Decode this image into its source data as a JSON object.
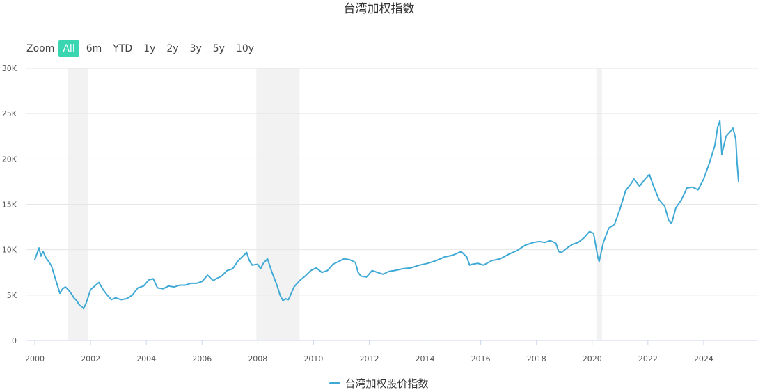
{
  "title": "台湾加权指数",
  "zoom": {
    "label": "Zoom",
    "options": [
      "All",
      "6m",
      "YTD",
      "1y",
      "2y",
      "3y",
      "5y",
      "10y"
    ],
    "selected": "All"
  },
  "colors": {
    "line": "#3fa9d6",
    "accent": "#3ad6b2",
    "band": "#f2f2f2",
    "grid": "#e6e6e6"
  },
  "chart_data": {
    "type": "line",
    "title": "台湾加权指数",
    "xlabel": "",
    "ylabel": "",
    "xlim": [
      2000.0,
      2025.4
    ],
    "ylim": [
      0,
      30000
    ],
    "x_ticks": [
      "2000",
      "2002",
      "2004",
      "2006",
      "2008",
      "2010",
      "2012",
      "2014",
      "2016",
      "2018",
      "2020",
      "2022",
      "2024"
    ],
    "y_ticks": [
      "0",
      "5K",
      "10K",
      "15K",
      "20K",
      "25K",
      "30K"
    ],
    "y_tick_values": [
      0,
      5000,
      10000,
      15000,
      20000,
      25000,
      30000
    ],
    "grid": true,
    "legend_position": "bottom-center",
    "shaded_bands": [
      [
        2001.2,
        2001.9
      ],
      [
        2007.95,
        2009.5
      ],
      [
        2020.15,
        2020.35
      ]
    ],
    "series": [
      {
        "name": "台湾加权股价指数",
        "x": [
          2000.0,
          2000.08,
          2000.15,
          2000.22,
          2000.3,
          2000.4,
          2000.5,
          2000.6,
          2000.7,
          2000.8,
          2000.9,
          2001.0,
          2001.1,
          2001.2,
          2001.3,
          2001.4,
          2001.5,
          2001.6,
          2001.7,
          2001.75,
          2001.85,
          2002.0,
          2002.15,
          2002.3,
          2002.45,
          2002.6,
          2002.75,
          2002.9,
          2003.1,
          2003.3,
          2003.5,
          2003.7,
          2003.9,
          2004.1,
          2004.25,
          2004.4,
          2004.6,
          2004.8,
          2005.0,
          2005.2,
          2005.4,
          2005.6,
          2005.8,
          2006.0,
          2006.2,
          2006.4,
          2006.5,
          2006.7,
          2006.9,
          2007.1,
          2007.3,
          2007.5,
          2007.6,
          2007.7,
          2007.8,
          2008.0,
          2008.1,
          2008.2,
          2008.35,
          2008.5,
          2008.7,
          2008.8,
          2008.9,
          2009.0,
          2009.1,
          2009.3,
          2009.5,
          2009.7,
          2009.9,
          2010.1,
          2010.3,
          2010.5,
          2010.7,
          2010.9,
          2011.1,
          2011.3,
          2011.5,
          2011.6,
          2011.7,
          2011.9,
          2012.1,
          2012.3,
          2012.5,
          2012.7,
          2012.9,
          2013.2,
          2013.5,
          2013.8,
          2014.1,
          2014.4,
          2014.7,
          2015.0,
          2015.3,
          2015.5,
          2015.6,
          2015.7,
          2015.9,
          2016.1,
          2016.4,
          2016.7,
          2017.0,
          2017.3,
          2017.6,
          2017.9,
          2018.1,
          2018.3,
          2018.5,
          2018.7,
          2018.8,
          2018.9,
          2019.1,
          2019.3,
          2019.5,
          2019.7,
          2019.9,
          2020.05,
          2020.2,
          2020.25,
          2020.4,
          2020.6,
          2020.8,
          2021.0,
          2021.2,
          2021.4,
          2021.5,
          2021.7,
          2021.9,
          2022.05,
          2022.2,
          2022.4,
          2022.6,
          2022.75,
          2022.85,
          2023.0,
          2023.2,
          2023.4,
          2023.6,
          2023.8,
          2024.0,
          2024.2,
          2024.4,
          2024.5,
          2024.58,
          2024.65,
          2024.8,
          2024.95,
          2025.05,
          2025.15,
          2025.2,
          2025.25
        ],
        "values": [
          8900,
          9600,
          10200,
          9300,
          9800,
          9100,
          8700,
          8200,
          7200,
          6200,
          5200,
          5700,
          5900,
          5600,
          5200,
          4700,
          4400,
          3900,
          3700,
          3500,
          4200,
          5600,
          6000,
          6400,
          5600,
          5000,
          4500,
          4700,
          4500,
          4600,
          5000,
          5800,
          6000,
          6700,
          6800,
          5800,
          5700,
          6000,
          5900,
          6100,
          6100,
          6300,
          6300,
          6500,
          7200,
          6600,
          6800,
          7100,
          7700,
          7900,
          8800,
          9400,
          9700,
          8800,
          8300,
          8400,
          7900,
          8500,
          9000,
          7600,
          6000,
          5000,
          4400,
          4600,
          4500,
          5900,
          6600,
          7100,
          7700,
          8000,
          7500,
          7700,
          8400,
          8700,
          9000,
          8900,
          8600,
          7500,
          7100,
          7000,
          7700,
          7500,
          7300,
          7600,
          7700,
          7900,
          8000,
          8300,
          8500,
          8800,
          9200,
          9400,
          9800,
          9200,
          8300,
          8400,
          8500,
          8300,
          8800,
          9000,
          9500,
          9900,
          10500,
          10800,
          10900,
          10800,
          11000,
          10700,
          9800,
          9700,
          10200,
          10600,
          10800,
          11300,
          12000,
          11800,
          9200,
          8700,
          10800,
          12400,
          12800,
          14500,
          16500,
          17300,
          17800,
          17000,
          17800,
          18300,
          17000,
          15500,
          14800,
          13200,
          12900,
          14600,
          15500,
          16800,
          16900,
          16600,
          17800,
          19500,
          21500,
          23500,
          24200,
          20500,
          22500,
          23000,
          23400,
          22200,
          19500,
          17500
        ]
      }
    ]
  }
}
